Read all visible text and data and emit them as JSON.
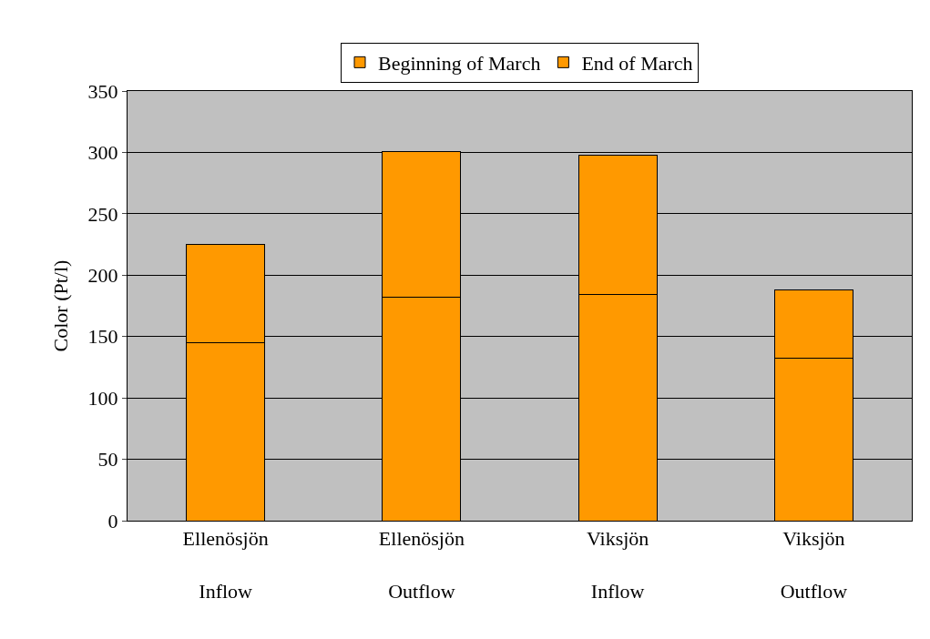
{
  "chart_data": {
    "type": "bar",
    "stacked": true,
    "ylabel": "Color (Pt/l)",
    "categories": [
      "Ellenösjön\nInflow",
      "Ellenösjön\nOutflow",
      "Viksjön\nInflow",
      "Viksjön\nOutflow"
    ],
    "series": [
      {
        "name": "Beginning of March",
        "color": "#ff9900",
        "values": [
          145,
          182,
          184,
          132
        ]
      },
      {
        "name": "End of March",
        "color": "#ff9900",
        "values": [
          80,
          119,
          114,
          56
        ]
      }
    ],
    "ylim": [
      0,
      350
    ],
    "yticks": [
      0,
      50,
      100,
      150,
      200,
      250,
      300,
      350
    ],
    "grid": "y",
    "legend": "top"
  }
}
